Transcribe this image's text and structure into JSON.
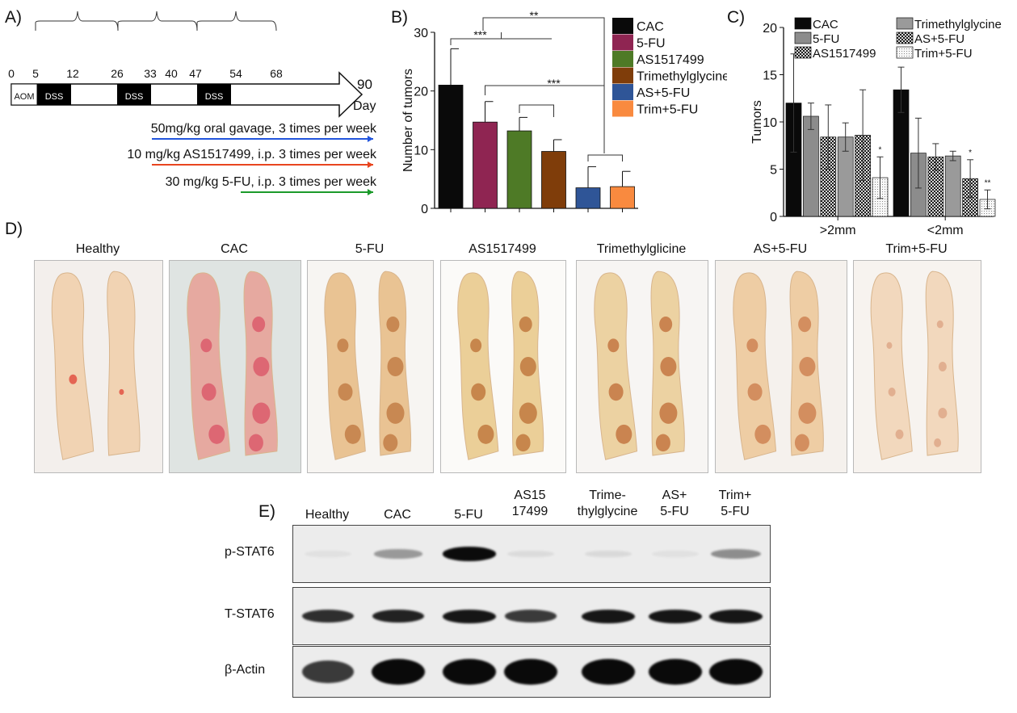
{
  "panel_letters": {
    "a": "A)",
    "b": "B)",
    "c": "C)",
    "d": "D)",
    "e": "E)"
  },
  "timeline": {
    "days": [
      "0",
      "5",
      "12",
      "26",
      "33",
      "40",
      "47",
      "54",
      "68"
    ],
    "end_day": "90",
    "day_label": "Day",
    "aom_label": "AOM",
    "dss_label": "DSS",
    "treatments": [
      {
        "text": "50mg/kg oral gavage, 3 times per week",
        "color": "#2255dd"
      },
      {
        "text": "10 mg/kg AS1517499, i.p. 3 times per week",
        "color": "#e8451f"
      },
      {
        "text": "30 mg/kg 5-FU, i.p. 3 times per week",
        "color": "#1b9a2a"
      }
    ]
  },
  "chart_data": [
    {
      "type": "bar",
      "ylabel": "Number of tumors",
      "ylim": [
        0,
        30
      ],
      "yticks": [
        "0",
        "10",
        "20",
        "30"
      ],
      "categories": [
        "CAC",
        "5-FU",
        "AS1517499",
        "Trimethylglycine",
        "AS+5-FU",
        "Trim+5-FU"
      ],
      "values": [
        21,
        14.7,
        13.2,
        9.7,
        3.5,
        3.7
      ],
      "errors": [
        6.2,
        3.5,
        2.3,
        2.0,
        3.6,
        2.6
      ],
      "colors": [
        "#0a0a0a",
        "#8f2552",
        "#4e7a26",
        "#7f3d0a",
        "#2f5597",
        "#f98a3f"
      ],
      "legend": [
        "CAC",
        "5-FU",
        "AS1517499",
        "Trimethylglycine",
        "AS+5-FU",
        "Trim+5-FU"
      ],
      "significance": [
        "***",
        "**",
        "***"
      ]
    },
    {
      "type": "bar",
      "ylabel": "Tumors",
      "ylim": [
        0,
        20
      ],
      "yticks": [
        "0",
        "5",
        "10",
        "15",
        "20"
      ],
      "categories": [
        ">2mm",
        "<2mm"
      ],
      "series": [
        {
          "name": "CAC",
          "values": [
            12.0,
            13.4
          ],
          "errors": [
            5.2,
            2.4
          ],
          "fill": "#0a0a0a"
        },
        {
          "name": "5-FU",
          "values": [
            10.6,
            6.7
          ],
          "errors": [
            1.4,
            3.7
          ],
          "fill": "#8c8c8c"
        },
        {
          "name": "AS1517499",
          "values": [
            8.4,
            6.3
          ],
          "errors": [
            3.4,
            1.4
          ],
          "fill": "#555555"
        },
        {
          "name": "Trimethylglycine",
          "values": [
            8.4,
            6.4
          ],
          "errors": [
            1.5,
            0.5
          ],
          "fill": "#9a9a9a"
        },
        {
          "name": "AS+5-FU",
          "values": [
            8.6,
            4.0
          ],
          "errors": [
            4.8,
            2.0
          ],
          "fill": "#6e6e6e"
        },
        {
          "name": "Trim+5-FU",
          "values": [
            4.1,
            1.8
          ],
          "errors": [
            2.2,
            1.0
          ],
          "fill": "#f2f2f2"
        }
      ],
      "annotations": [
        "*",
        "*",
        "**"
      ]
    }
  ],
  "photos": [
    {
      "label": "Healthy",
      "bg": "#f3efec",
      "tissue": "#f1d3b3",
      "spot": "#e14a3b"
    },
    {
      "label": "CAC",
      "bg": "#dfe4e2",
      "tissue": "#e6a9a0",
      "spot": "#d9435a"
    },
    {
      "label": "5-FU",
      "bg": "#f7f5f2",
      "tissue": "#e9c393",
      "spot": "#b7682f"
    },
    {
      "label": "AS1517499",
      "bg": "#fbfaf8",
      "tissue": "#ebcf98",
      "spot": "#b35f24"
    },
    {
      "label": "Trimethylglicine",
      "bg": "#f7f5f3",
      "tissue": "#ecd2a2",
      "spot": "#b85a25"
    },
    {
      "label": "AS+5-FU",
      "bg": "#f5f1ed",
      "tissue": "#eecda4",
      "spot": "#c46b3a"
    },
    {
      "label": "Trim+5-FU",
      "bg": "#f7f3ef",
      "tissue": "#f2d8bd",
      "spot": "#d79a78"
    }
  ],
  "blot": {
    "lanes": [
      "Healthy",
      "CAC",
      "5-FU",
      "AS15\n17499",
      "Trime-\nthylglycine",
      "AS+\n5-FU",
      "Trim+\n5-FU"
    ],
    "rows": [
      {
        "label": "p-STAT6",
        "intensity": [
          0.05,
          0.35,
          0.95,
          0.07,
          0.08,
          0.05,
          0.4
        ]
      },
      {
        "label": "T-STAT6",
        "intensity": [
          0.8,
          0.85,
          0.9,
          0.75,
          0.9,
          0.9,
          0.9
        ]
      },
      {
        "label": "β-Actin",
        "intensity": [
          0.75,
          1.0,
          1.0,
          1.0,
          1.0,
          1.0,
          1.0
        ]
      }
    ]
  }
}
